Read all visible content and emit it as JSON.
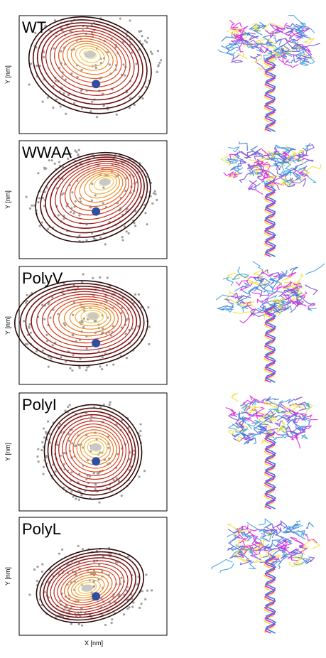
{
  "panels": [
    {
      "label": "WT",
      "y_axis_label": "Y [nm]"
    },
    {
      "label": "WWAA",
      "y_axis_label": "Y [nm]"
    },
    {
      "label": "PolyV",
      "y_axis_label": "Y [nm]"
    },
    {
      "label": "PolyI",
      "y_axis_label": "Y [nm]"
    },
    {
      "label": "PolyL",
      "y_axis_label": "Y [nm]"
    }
  ],
  "x_axis_label": "X [nm]"
}
